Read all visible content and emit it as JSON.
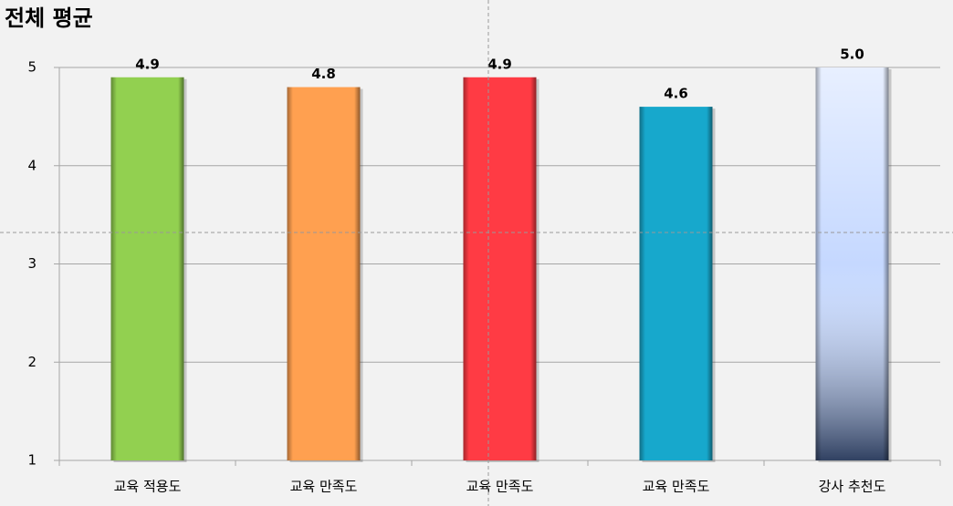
{
  "chart_data": {
    "type": "bar",
    "title": "전체 평균",
    "categories": [
      "교육 적용도",
      "교육 만족도",
      "교육 만족도",
      "교육 만족도",
      "강사 추천도"
    ],
    "values": [
      4.9,
      4.8,
      4.9,
      4.6,
      5.0
    ],
    "value_labels": [
      "4.9",
      "4.8",
      "4.9",
      "4.6",
      "5.0"
    ],
    "colors": [
      "#92d050",
      "#ffa050",
      "#ff3b44",
      "#17a8cc",
      "#c5d8ff"
    ],
    "ylim": [
      1,
      5
    ],
    "yticks": [
      1,
      2,
      3,
      4,
      5
    ],
    "grid": true
  }
}
